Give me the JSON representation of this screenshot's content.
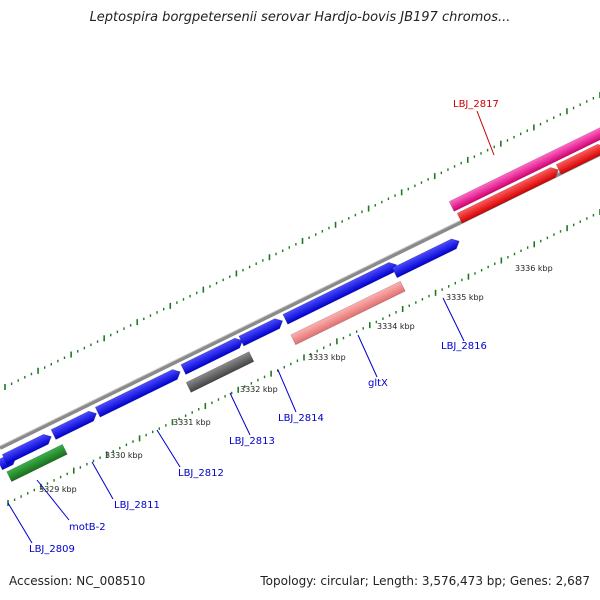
{
  "title": "Leptospira borgpetersenii serovar Hardjo-bovis JB197 chromos...",
  "footer": {
    "accession": "Accession: NC_008510",
    "summary": "Topology: circular; Length: 3,576,473 bp; Genes: 2,687"
  },
  "colors": {
    "backbone": "#888888",
    "tick": "#1f7a1f",
    "gene_blue": "#0000ff",
    "gene_red": "#ff0000",
    "gene_magenta": "#e6007a",
    "gene_pink": "#f08080",
    "gene_gray": "#666666",
    "gene_green": "#228b22",
    "label_blue": "#0000cc",
    "label_red": "#cc0000"
  },
  "kbp_labels": [
    "3329 kbp",
    "3330 kbp",
    "3331 kbp",
    "3332 kbp",
    "3333 kbp",
    "3334 kbp",
    "3335 kbp",
    "3336 kbp"
  ],
  "genes": [
    {
      "id": "LBJ_2809",
      "color": "gene_blue"
    },
    {
      "id": "motB-2",
      "color": "gene_green"
    },
    {
      "id": "LBJ_2811",
      "color": "gene_blue"
    },
    {
      "id": "LBJ_2812",
      "color": "gene_blue"
    },
    {
      "id": "LBJ_2813",
      "color": "gene_gray"
    },
    {
      "id": "LBJ_2814",
      "color": "gene_blue"
    },
    {
      "id": "gltX",
      "color": "gene_pink"
    },
    {
      "id": "LBJ_2816",
      "color": "gene_blue"
    },
    {
      "id": "LBJ_2817",
      "color": "gene_magenta"
    }
  ],
  "gene_labels": [
    "LBJ_2809",
    "motB-2",
    "LBJ_2811",
    "LBJ_2812",
    "LBJ_2813",
    "LBJ_2814",
    "gltX",
    "LBJ_2816",
    "LBJ_2817"
  ]
}
